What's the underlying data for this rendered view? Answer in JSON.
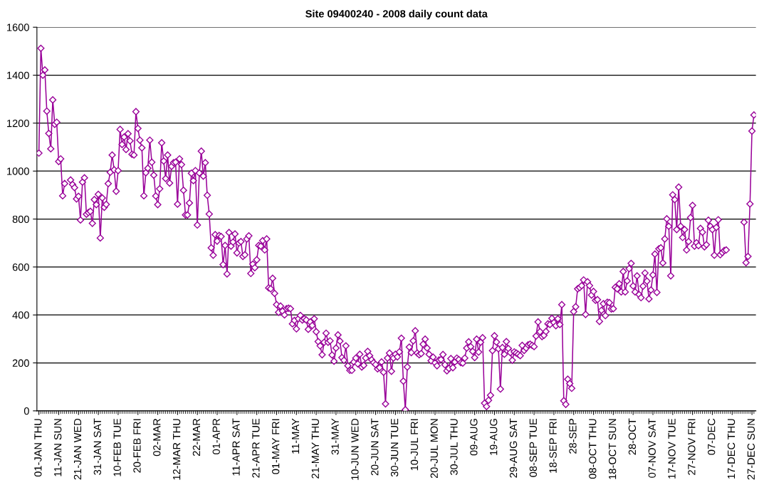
{
  "chart_data": {
    "type": "line",
    "title": "Site 09400240 - 2008 daily count data",
    "ylim": [
      0,
      1600
    ],
    "yticks": [
      0,
      200,
      400,
      600,
      800,
      1000,
      1200,
      1400,
      1600
    ],
    "categories": [
      "01-JAN THU",
      null,
      null,
      null,
      null,
      null,
      null,
      null,
      null,
      null,
      "11-JAN SUN",
      null,
      null,
      null,
      null,
      null,
      null,
      null,
      null,
      null,
      "21-JAN WED",
      null,
      null,
      null,
      null,
      null,
      null,
      null,
      null,
      null,
      "31-JAN SAT",
      null,
      null,
      null,
      null,
      null,
      null,
      null,
      null,
      null,
      "10-FEB TUE",
      null,
      null,
      null,
      null,
      null,
      null,
      null,
      null,
      null,
      "20-FEB FRI",
      null,
      null,
      null,
      null,
      null,
      null,
      null,
      null,
      null,
      "02-MAR",
      null,
      null,
      null,
      null,
      null,
      null,
      null,
      null,
      null,
      "12-MAR THU",
      null,
      null,
      null,
      null,
      null,
      null,
      null,
      null,
      null,
      "22-MAR",
      null,
      null,
      null,
      null,
      null,
      null,
      null,
      null,
      null,
      "01-APR",
      null,
      null,
      null,
      null,
      null,
      null,
      null,
      null,
      null,
      "11-APR SAT",
      null,
      null,
      null,
      null,
      null,
      null,
      null,
      null,
      null,
      "21-APR TUE",
      null,
      null,
      null,
      null,
      null,
      null,
      null,
      null,
      null,
      "01-MAY FRI",
      null,
      null,
      null,
      null,
      null,
      null,
      null,
      null,
      null,
      "11-MAY",
      null,
      null,
      null,
      null,
      null,
      null,
      null,
      null,
      null,
      "21-MAY THU",
      null,
      null,
      null,
      null,
      null,
      null,
      null,
      null,
      null,
      "31-MAY",
      null,
      null,
      null,
      null,
      null,
      null,
      null,
      null,
      null,
      "10-JUN WED",
      null,
      null,
      null,
      null,
      null,
      null,
      null,
      null,
      null,
      "20-JUN SAT",
      null,
      null,
      null,
      null,
      null,
      null,
      null,
      null,
      null,
      "30-JUN TUE",
      null,
      null,
      null,
      null,
      null,
      null,
      null,
      null,
      null,
      "10-JUL FRI",
      null,
      null,
      null,
      null,
      null,
      null,
      null,
      null,
      null,
      "20-JUL MON",
      null,
      null,
      null,
      null,
      null,
      null,
      null,
      null,
      null,
      "30-JUL THU",
      null,
      null,
      null,
      null,
      null,
      null,
      null,
      null,
      null,
      "09-AUG",
      null,
      null,
      null,
      null,
      null,
      null,
      null,
      null,
      null,
      "19-AUG",
      null,
      null,
      null,
      null,
      null,
      null,
      null,
      null,
      null,
      "29-AUG SAT",
      null,
      null,
      null,
      null,
      null,
      null,
      null,
      null,
      null,
      "08-SEP TUE",
      null,
      null,
      null,
      null,
      null,
      null,
      null,
      null,
      null,
      "18-SEP FRI",
      null,
      null,
      null,
      null,
      null,
      null,
      null,
      null,
      null,
      "28-SEP",
      null,
      null,
      null,
      null,
      null,
      null,
      null,
      null,
      null,
      "08-OCT THU",
      null,
      null,
      null,
      null,
      null,
      null,
      null,
      null,
      null,
      "18-OCT SUN",
      null,
      null,
      null,
      null,
      null,
      null,
      null,
      null,
      null,
      "28-OCT",
      null,
      null,
      null,
      null,
      null,
      null,
      null,
      null,
      null,
      "07-NOV SAT",
      null,
      null,
      null,
      null,
      null,
      null,
      null,
      null,
      null,
      "17-NOV TUE",
      null,
      null,
      null,
      null,
      null,
      null,
      null,
      null,
      null,
      "27-NOV FRI",
      null,
      null,
      null,
      null,
      null,
      null,
      null,
      null,
      null,
      "07-DEC",
      null,
      null,
      null,
      null,
      null,
      null,
      null,
      null,
      null,
      "17-DEC THU",
      null,
      null,
      null,
      null,
      null,
      null,
      null,
      null,
      null,
      "27-DEC SUN",
      null
    ],
    "grid": "y",
    "marker": "diamond",
    "line_style": "solid",
    "series": [
      {
        "color": "#990099",
        "values": [
          1075,
          1512,
          1400,
          1422,
          1250,
          1157,
          1093,
          1297,
          1195,
          1204,
          1040,
          1051,
          897,
          948,
          null,
          null,
          963,
          944,
          931,
          884,
          895,
          796,
          954,
          972,
          820,
          827,
          832,
          782,
          881,
          860,
          903,
          721,
          888,
          849,
          861,
          948,
          995,
          1067,
          1005,
          916,
          1002,
          1174,
          1111,
          1142,
          1090,
          1156,
          1126,
          1070,
          1067,
          1248,
          1178,
          1129,
          1097,
          897,
          993,
          1012,
          1129,
          1037,
          983,
          896,
          860,
          926,
          1118,
          1042,
          969,
          1067,
          950,
          1020,
          1035,
          1037,
          862,
          1051,
          1027,
          920,
          817,
          817,
          867,
          991,
          960,
          1002,
          775,
          992,
          1083,
          979,
          1035,
          899,
          821,
          680,
          649,
          735,
          708,
          731,
          727,
          610,
          690,
          571,
          744,
          687,
          704,
          738,
          659,
          700,
          706,
          644,
          651,
          717,
          730,
          573,
          612,
          597,
          630,
          690,
          687,
          710,
          671,
          717,
          513,
          509,
          553,
          490,
          443,
          411,
          437,
          416,
          400,
          426,
          428,
          426,
          363,
          377,
          342,
          384,
          398,
          379,
          384,
          379,
          340,
          371,
          356,
          384,
          330,
          289,
          271,
          234,
          286,
          324,
          286,
          292,
          233,
          207,
          262,
          317,
          291,
          222,
          211,
          271,
          188,
          169,
          169,
          204,
          220,
          196,
          236,
          183,
          190,
          220,
          248,
          230,
          213,
          201,
          193,
          175,
          180,
          204,
          161,
          29,
          220,
          241,
          165,
          220,
          236,
          225,
          246,
          303,
          124,
          5,
          183,
          266,
          243,
          292,
          334,
          241,
          234,
          239,
          278,
          299,
          262,
          236,
          209,
          224,
          200,
          188,
          212,
          214,
          235,
          192,
          167,
          177,
          218,
          180,
          204,
          220,
          214,
          201,
          199,
          220,
          262,
          288,
          268,
          248,
          222,
          299,
          245,
          286,
          305,
          32,
          18,
          44,
          65,
          251,
          313,
          287,
          259,
          91,
          264,
          236,
          289,
          260,
          243,
          211,
          246,
          241,
          236,
          230,
          273,
          252,
          262,
          275,
          278,
          273,
          268,
          312,
          371,
          330,
          310,
          315,
          331,
          363,
          360,
          386,
          368,
          355,
          384,
          360,
          443,
          42,
          27,
          132,
          114,
          94,
          414,
          434,
          509,
          514,
          522,
          546,
          402,
          538,
          522,
          483,
          498,
          461,
          464,
          373,
          419,
          447,
          397,
          453,
          451,
          425,
          426,
          515,
          509,
          530,
          496,
          581,
          496,
          542,
          593,
          615,
          521,
          496,
          563,
          485,
          472,
          520,
          575,
          541,
          467,
          504,
          567,
          654,
          494,
          676,
          680,
          617,
          717,
          801,
          770,
          563,
          901,
          881,
          756,
          933,
          770,
          723,
          756,
          671,
          706,
          806,
          857,
          687,
          701,
          689,
          761,
          745,
          684,
          693,
          795,
          770,
          756,
          649,
          765,
          797,
          651,
          660,
          669,
          671,
          null,
          null,
          null,
          null,
          null,
          null,
          null,
          null,
          787,
          618,
          644,
          863,
          1167,
          1234
        ]
      }
    ]
  }
}
